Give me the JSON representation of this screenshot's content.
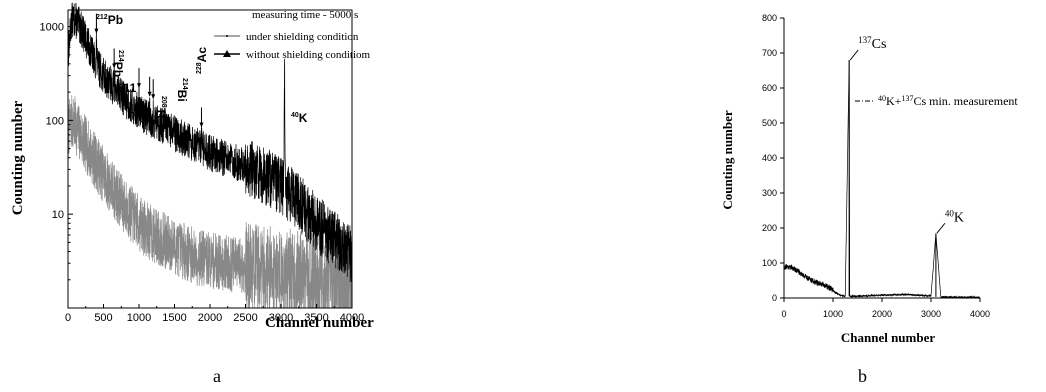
{
  "chart_data": [
    {
      "type": "line",
      "panel_label": "a",
      "xlabel": "Channel number",
      "ylabel": "Counting number",
      "xlim": [
        0,
        4000
      ],
      "ylim": [
        1,
        1500
      ],
      "y_scale": "log",
      "x_ticks": [
        0,
        500,
        1000,
        1500,
        2000,
        2500,
        3000,
        3500,
        4000
      ],
      "x_tick_labels": [
        "0",
        "500",
        "1000",
        "1500",
        "2000",
        "2500",
        "3000",
        "3500",
        "4000"
      ],
      "y_ticks": [
        10,
        100,
        1000
      ],
      "y_tick_labels": [
        "10",
        "100",
        "1000"
      ],
      "grid": false,
      "legend_position": "top-right",
      "legend_title": "measuring time  - 5000 s",
      "series": [
        {
          "name": "under shielding condition",
          "color": "#888888",
          "x": [
            0,
            50,
            100,
            150,
            250,
            400,
            600,
            800,
            1000,
            1200,
            1500,
            1800,
            2000,
            2500,
            3000,
            3500,
            4000
          ],
          "y": [
            80,
            95,
            90,
            75,
            55,
            35,
            20,
            12,
            8,
            6,
            4.5,
            3.5,
            3.2,
            2.8,
            2.4,
            2.0,
            1.8
          ]
        },
        {
          "name": "without shielding conditiom",
          "color": "#000000",
          "x": [
            0,
            50,
            100,
            150,
            200,
            300,
            400,
            500,
            700,
            900,
            1100,
            1300,
            1600,
            2000,
            2400,
            2800,
            3000,
            3200,
            3500,
            3800,
            4000
          ],
          "y": [
            500,
            1150,
            1200,
            1050,
            900,
            600,
            400,
            300,
            200,
            140,
            110,
            90,
            65,
            45,
            35,
            25,
            20,
            15,
            8,
            5,
            3.5
          ]
        }
      ],
      "peaks": [
        {
          "label": "212Pb",
          "sup": "212",
          "sym": "Pb",
          "x": 400,
          "y": 400,
          "height": 800
        },
        {
          "label": "214Pb",
          "sup": "214",
          "sym": "Pb",
          "x": 650,
          "y": 260,
          "height": 340
        },
        {
          "label": "511",
          "sup": "",
          "sym": "511",
          "x": 1000,
          "y": 170,
          "height": 210
        },
        {
          "label": "208Tl",
          "sup": "208",
          "sym": "Tl",
          "x": 1150,
          "y": 130,
          "height": 170
        },
        {
          "label": "214Bi",
          "sup": "214",
          "sym": "Bi",
          "x": 1200,
          "y": 120,
          "height": 160
        },
        {
          "label": "228Ac",
          "sup": "228",
          "sym": "Ac",
          "x": 1880,
          "y": 48,
          "height": 80
        },
        {
          "label": "40K",
          "sup": "40",
          "sym": "K",
          "x": 3050,
          "y": 20,
          "height": 230
        }
      ]
    },
    {
      "type": "line",
      "panel_label": "b",
      "xlabel": "Channel number",
      "ylabel": "Counting number",
      "xlim": [
        0,
        4000
      ],
      "ylim": [
        0,
        800
      ],
      "x_ticks": [
        0,
        1000,
        2000,
        3000,
        4000
      ],
      "x_tick_labels": [
        "0",
        "1000",
        "2000",
        "3000",
        "4000"
      ],
      "y_ticks": [
        0,
        100,
        200,
        300,
        400,
        500,
        600,
        700,
        800
      ],
      "y_tick_labels": [
        "0",
        "100",
        "200",
        "300",
        "400",
        "500",
        "600",
        "700",
        "800"
      ],
      "grid": false,
      "legend_position": "right",
      "series": [
        {
          "name": "40K+137Cs min. measurement",
          "legend_parts": {
            "sup1": "40",
            "t1": "K+",
            "sup2": "137",
            "t2": "Cs min. measurement"
          },
          "color": "#000000",
          "x": [
            0,
            50,
            150,
            250,
            350,
            450,
            550,
            650,
            750,
            850,
            950,
            1050,
            1150,
            1250,
            1330,
            1340,
            1360,
            1400,
            1600,
            2000,
            2500,
            3000,
            3100,
            3200,
            3600,
            4000
          ],
          "y": [
            85,
            90,
            88,
            80,
            70,
            60,
            52,
            45,
            40,
            35,
            28,
            15,
            8,
            5,
            680,
            5,
            5,
            5,
            6,
            8,
            10,
            6,
            185,
            3,
            2,
            2
          ]
        }
      ],
      "peaks": [
        {
          "label": "137Cs",
          "sup": "137",
          "sym": "Cs",
          "x": 1330,
          "y": 680
        },
        {
          "label": "40K",
          "sup": "40",
          "sym": "K",
          "x": 3100,
          "y": 185
        }
      ]
    }
  ]
}
